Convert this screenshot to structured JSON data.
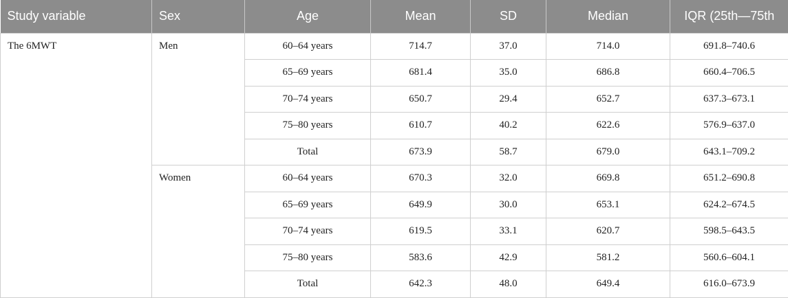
{
  "table": {
    "headers": [
      "Study variable",
      "Sex",
      "Age",
      "Mean",
      "SD",
      "Median",
      "IQR (25th—75th"
    ],
    "study_variable": "The 6MWT",
    "groups": [
      {
        "sex": "Men",
        "rows": [
          {
            "age": "60–64 years",
            "mean": "714.7",
            "sd": "37.0",
            "median": "714.0",
            "iqr": "691.8–740.6"
          },
          {
            "age": "65–69 years",
            "mean": "681.4",
            "sd": "35.0",
            "median": "686.8",
            "iqr": "660.4–706.5"
          },
          {
            "age": "70–74 years",
            "mean": "650.7",
            "sd": "29.4",
            "median": "652.7",
            "iqr": "637.3–673.1"
          },
          {
            "age": "75–80 years",
            "mean": "610.7",
            "sd": "40.2",
            "median": "622.6",
            "iqr": "576.9–637.0"
          },
          {
            "age": "Total",
            "mean": "673.9",
            "sd": "58.7",
            "median": "679.0",
            "iqr": "643.1–709.2"
          }
        ]
      },
      {
        "sex": "Women",
        "rows": [
          {
            "age": "60–64 years",
            "mean": "670.3",
            "sd": "32.0",
            "median": "669.8",
            "iqr": "651.2–690.8"
          },
          {
            "age": "65–69 years",
            "mean": "649.9",
            "sd": "30.0",
            "median": "653.1",
            "iqr": "624.2–674.5"
          },
          {
            "age": "70–74 years",
            "mean": "619.5",
            "sd": "33.1",
            "median": "620.7",
            "iqr": "598.5–643.5"
          },
          {
            "age": "75–80 years",
            "mean": "583.6",
            "sd": "42.9",
            "median": "581.2",
            "iqr": "560.6–604.1"
          },
          {
            "age": "Total",
            "mean": "642.3",
            "sd": "48.0",
            "median": "649.4",
            "iqr": "616.0–673.9"
          }
        ]
      }
    ]
  }
}
